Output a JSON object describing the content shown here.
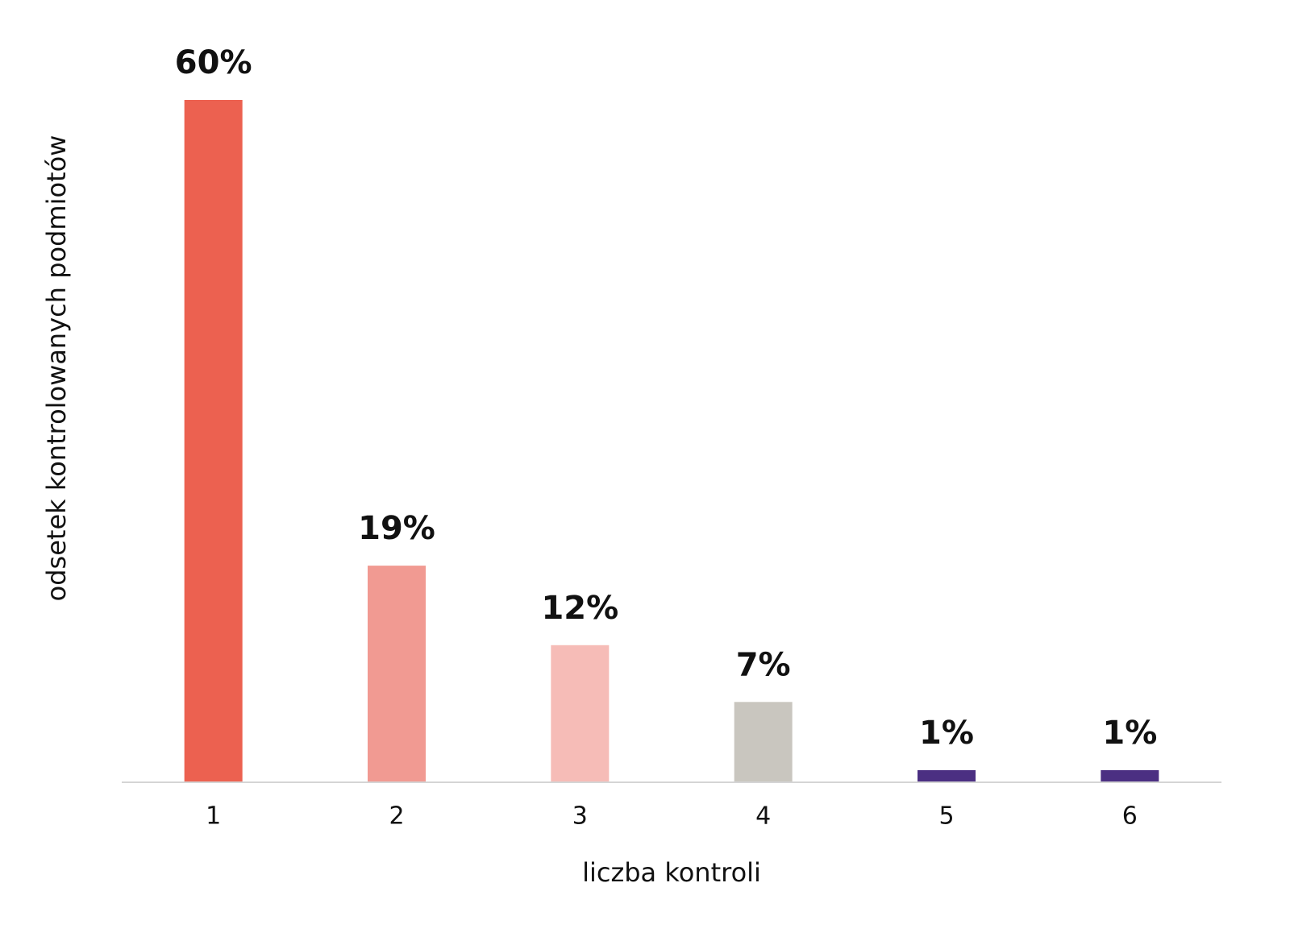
{
  "chart_data": {
    "type": "bar",
    "x_label": "liczba kontroli",
    "y_label": "odsetek kontrolowanych podmiotów",
    "categories": [
      "1",
      "2",
      "3",
      "4",
      "5",
      "6"
    ],
    "values": [
      60,
      19,
      12,
      7,
      1,
      1
    ],
    "value_labels": [
      "60%",
      "19%",
      "12%",
      "7%",
      "1%",
      "1%"
    ],
    "colors": [
      "#ec6150",
      "#f19a92",
      "#f6bcb7",
      "#c9c6bf",
      "#4b2f82",
      "#4b2f82"
    ],
    "ylim": [
      0,
      60
    ]
  }
}
